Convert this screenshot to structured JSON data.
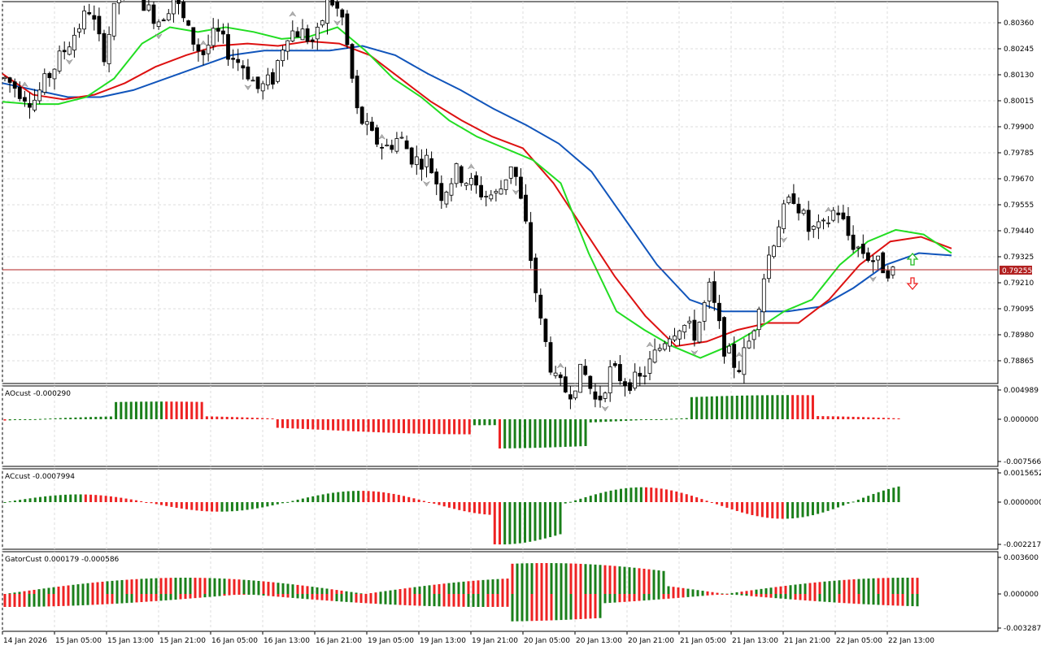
{
  "colors": {
    "background": "#ffffff",
    "grid": "#dcdcdc",
    "frame": "#000000",
    "candle_bull": "#ffffff",
    "candle_bear": "#000000",
    "ma_fast": "#22dd22",
    "ma_mid": "#dd1111",
    "ma_slow": "#1155bb",
    "bid_line": "#b22222",
    "hist_up": "#1a7f1a",
    "hist_down": "#ee2222",
    "arrow_up": "#22bb22",
    "arrow_down": "#ee2222",
    "fractal": "#b0b0b0"
  },
  "price_pane": {
    "current_price_label": "0.79255",
    "current_price": 0.79255,
    "axis_labels": [
      "0.80360",
      "0.80245",
      "0.80130",
      "0.80015",
      "0.79900",
      "0.79785",
      "0.79670",
      "0.79555",
      "0.79440",
      "0.79325",
      "0.79210",
      "0.79095",
      "0.78980",
      "0.78865"
    ],
    "signal_up_icon": "hollow-up-arrow",
    "signal_down_icon": "hollow-down-arrow"
  },
  "ao_pane": {
    "title": "AOcust -0.000290",
    "axis_labels": [
      "0.004989",
      "0.000000",
      "-0.007566"
    ]
  },
  "ac_pane": {
    "title": "ACcust -0.0007994",
    "axis_labels": [
      "0.0015652",
      "0.0000000",
      "-0.0022176"
    ]
  },
  "gator_pane": {
    "title": "GatorCust 0.000179 -0.000586",
    "axis_labels": [
      "0.003600",
      "0.000000",
      "-0.003287"
    ]
  },
  "time_axis": {
    "labels": [
      "14 Jan 2026",
      "15 Jan 05:00",
      "15 Jan 13:00",
      "15 Jan 21:00",
      "16 Jan 05:00",
      "16 Jan 13:00",
      "16 Jan 21:00",
      "19 Jan 05:00",
      "19 Jan 13:00",
      "19 Jan 21:00",
      "20 Jan 05:00",
      "20 Jan 13:00",
      "20 Jan 21:00",
      "21 Jan 05:00",
      "21 Jan 13:00",
      "21 Jan 21:00",
      "22 Jan 05:00",
      "22 Jan 13:00"
    ]
  },
  "chart_data": {
    "type": "candlestick",
    "symbol_pane_price_range": [
      0.7879,
      0.8043
    ],
    "close_anchors": [
      0.801,
      0.8005,
      0.8,
      0.801,
      0.802,
      0.803,
      0.804,
      0.802,
      0.8045,
      0.806,
      0.804,
      0.8035,
      0.8045,
      0.803,
      0.802,
      0.803,
      0.802,
      0.8015,
      0.8005,
      0.801,
      0.803,
      0.803,
      0.8025,
      0.8045,
      0.8035,
      0.7995,
      0.7985,
      0.798,
      0.7985,
      0.7975,
      0.7975,
      0.796,
      0.797,
      0.7965,
      0.796,
      0.796,
      0.7975,
      0.7945,
      0.7905,
      0.788,
      0.7875,
      0.7885,
      0.787,
      0.7885,
      0.788,
      0.788,
      0.789,
      0.79,
      0.7905,
      0.79,
      0.792,
      0.7895,
      0.7885,
      0.79,
      0.793,
      0.795,
      0.796,
      0.7945,
      0.7945,
      0.7955,
      0.794,
      0.7935,
      0.793,
      0.7927
    ],
    "ma_fast": [
      0.8,
      0.7999,
      0.7999,
      0.8002,
      0.801,
      0.8025,
      0.8032,
      0.803,
      0.8032,
      0.803,
      0.8027,
      0.8028,
      0.8032,
      0.8022,
      0.801,
      0.8002,
      0.7992,
      0.7985,
      0.798,
      0.7975,
      0.7965,
      0.7935,
      0.791,
      0.7902,
      0.7895,
      0.789,
      0.7895,
      0.7902,
      0.791,
      0.7915,
      0.793,
      0.794,
      0.7945,
      0.7943,
      0.7935
    ],
    "ma_mid": [
      0.8012,
      0.8003,
      0.8001,
      0.8003,
      0.8008,
      0.8015,
      0.802,
      0.8024,
      0.8025,
      0.8024,
      0.8026,
      0.8025,
      0.802,
      0.801,
      0.8,
      0.7992,
      0.7985,
      0.798,
      0.7965,
      0.7945,
      0.7925,
      0.7908,
      0.7895,
      0.7897,
      0.7902,
      0.7905,
      0.7905,
      0.7915,
      0.793,
      0.794,
      0.7942,
      0.7937
    ],
    "ma_slow": [
      0.8008,
      0.8005,
      0.8002,
      0.8002,
      0.8005,
      0.801,
      0.8015,
      0.802,
      0.8022,
      0.8022,
      0.8022,
      0.8024,
      0.802,
      0.8012,
      0.8005,
      0.7997,
      0.799,
      0.7982,
      0.797,
      0.795,
      0.793,
      0.7915,
      0.791,
      0.791,
      0.791,
      0.7912,
      0.792,
      0.793,
      0.7935,
      0.7934
    ]
  }
}
